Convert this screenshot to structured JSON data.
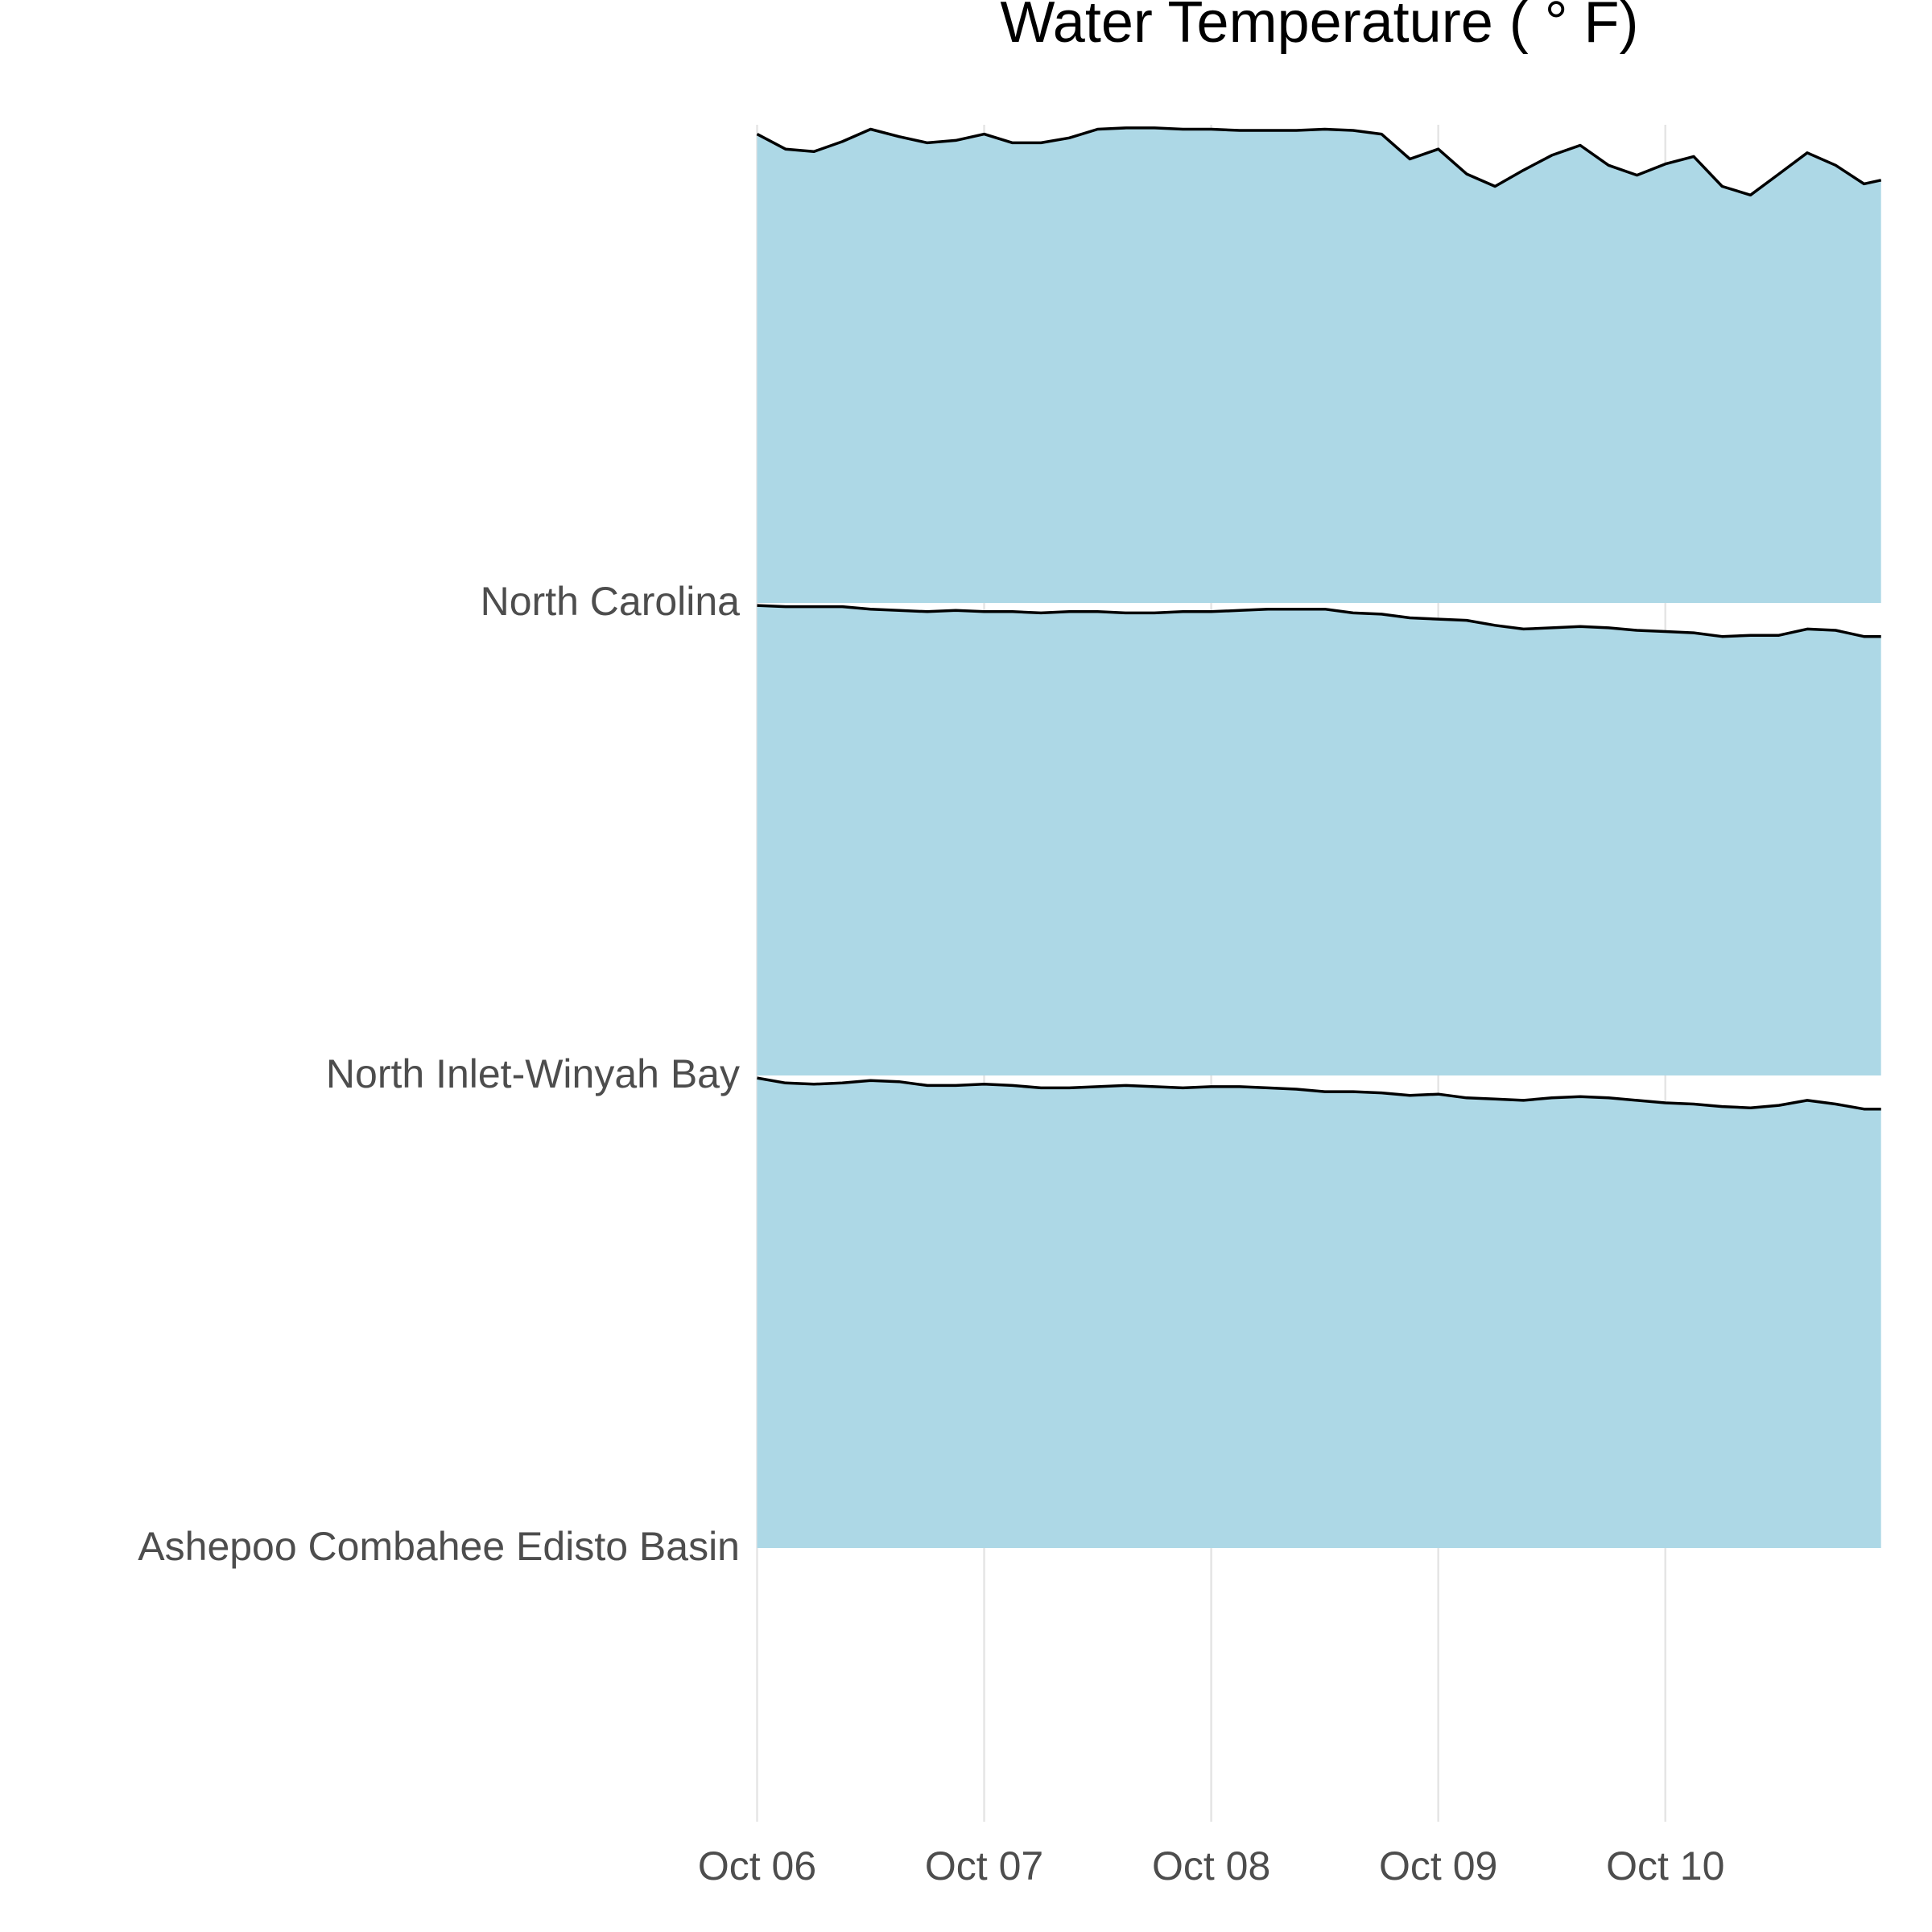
{
  "chart_data": {
    "type": "ridgeline",
    "title": "Water Temperature ( ° F)",
    "x": [
      0,
      0.125,
      0.25,
      0.375,
      0.5,
      0.625,
      0.75,
      0.875,
      1,
      1.125,
      1.25,
      1.375,
      1.5,
      1.625,
      1.75,
      1.875,
      2,
      2.125,
      2.25,
      2.375,
      2.5,
      2.625,
      2.75,
      2.875,
      3,
      3.125,
      3.25,
      3.375,
      3.5,
      3.625,
      3.75,
      3.875,
      4,
      4.125,
      4.25,
      4.375,
      4.5,
      4.625,
      4.75,
      4.875,
      4.95
    ],
    "xlim": [
      0,
      4.95
    ],
    "xticks": [
      {
        "value": 0,
        "label": "Oct 06"
      },
      {
        "value": 1,
        "label": "Oct 07"
      },
      {
        "value": 2,
        "label": "Oct 08"
      },
      {
        "value": 3,
        "label": "Oct 09"
      },
      {
        "value": 4,
        "label": "Oct 10"
      }
    ],
    "ylim": [
      0,
      76
    ],
    "grid": true,
    "fill": "#add8e6",
    "line_color": "#000000",
    "series": [
      {
        "name": "North Carolina",
        "values": [
          75.4,
          73,
          72.6,
          74.2,
          76.2,
          75,
          74,
          74.4,
          75.4,
          74,
          74,
          74.8,
          76.2,
          76.4,
          76.4,
          76.2,
          76.2,
          76,
          76,
          76,
          76.2,
          76,
          75.4,
          71.4,
          73,
          69,
          67,
          69.6,
          72,
          73.6,
          70.4,
          68.8,
          70.6,
          71.8,
          67,
          65.6,
          69,
          72.4,
          70.4,
          67.4,
          68
        ]
      },
      {
        "name": "North Inlet-Winyah Bay",
        "values": [
          75.6,
          75.4,
          75.4,
          75.4,
          75,
          74.8,
          74.6,
          74.8,
          74.6,
          74.6,
          74.4,
          74.6,
          74.6,
          74.4,
          74.4,
          74.6,
          74.6,
          74.8,
          75,
          75,
          75,
          74.4,
          74.2,
          73.6,
          73.4,
          73.2,
          72.4,
          71.8,
          72,
          72.2,
          72,
          71.6,
          71.4,
          71.2,
          70.6,
          70.8,
          70.8,
          71.8,
          71.6,
          70.6,
          70.6
        ]
      },
      {
        "name": "Ashepoo Combahee Edisto Basin",
        "values": [
          75.6,
          74.8,
          74.6,
          74.8,
          75.2,
          75,
          74.4,
          74.4,
          74.6,
          74.4,
          74,
          74,
          74.2,
          74.4,
          74.2,
          74,
          74.2,
          74.2,
          74,
          73.8,
          73.4,
          73.4,
          73.2,
          72.8,
          73,
          72.4,
          72.2,
          72,
          72.4,
          72.6,
          72.4,
          72,
          71.6,
          71.4,
          71,
          70.8,
          71.2,
          72,
          71.4,
          70.6,
          70.6
        ]
      }
    ]
  }
}
